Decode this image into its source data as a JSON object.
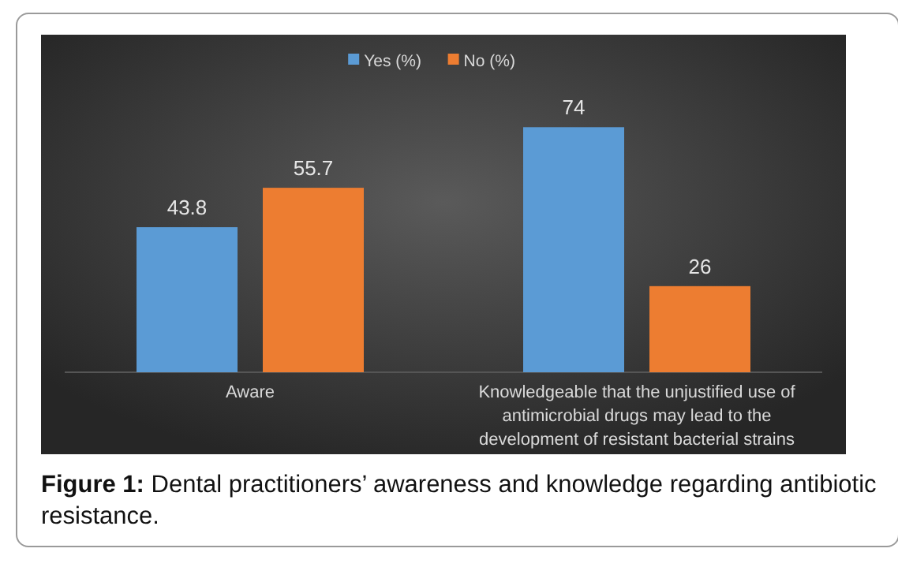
{
  "chart_data": {
    "type": "bar",
    "categories": [
      "Aware",
      "Knowledgeable that the unjustified use of antimicrobial drugs may lead to the development of resistant bacterial strains"
    ],
    "series": [
      {
        "name": "Yes (%)",
        "color": "#5b9bd5",
        "values": [
          43.8,
          74
        ]
      },
      {
        "name": "No (%)",
        "color": "#ed7d31",
        "values": [
          55.7,
          26
        ]
      }
    ],
    "data_labels": true,
    "legend": "top",
    "grid": false,
    "annotations": [
      "Figure 1: Dental practitioners’ awareness and knowledge regarding antibiotic resistance."
    ]
  }
}
